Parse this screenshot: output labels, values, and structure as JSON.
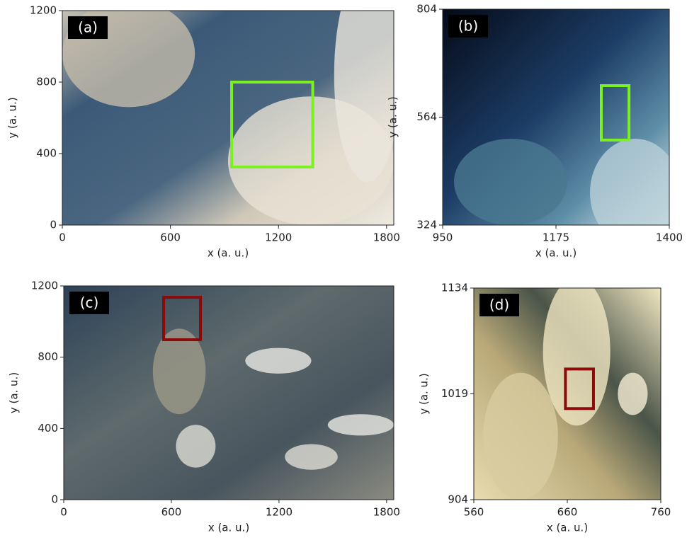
{
  "chart_data": [
    {
      "type": "image",
      "label": "(a)",
      "xlabel": "x (a. u.)",
      "ylabel": "y (a. u.)",
      "xlim": [
        0,
        1840
      ],
      "ylim": [
        0,
        1200
      ],
      "xticks": [
        0,
        600,
        1200,
        1800
      ],
      "yticks": [
        0,
        400,
        800,
        1200
      ],
      "box": {
        "x": [
          940,
          1390
        ],
        "y": [
          325,
          800
        ],
        "color": "#7cf020"
      }
    },
    {
      "type": "image",
      "label": "(b)",
      "xlabel": "x (a. u.)",
      "ylabel": "y (a. u.)",
      "xlim": [
        950,
        1400
      ],
      "ylim": [
        324,
        804
      ],
      "xticks": [
        950,
        1175,
        1400
      ],
      "yticks": [
        324,
        564,
        804
      ],
      "box": {
        "x": [
          1265,
          1320
        ],
        "y": [
          513,
          634
        ],
        "color": "#7cf020"
      }
    },
    {
      "type": "image",
      "label": "(c)",
      "xlabel": "x (a. u.)",
      "ylabel": "y (a. u.)",
      "xlim": [
        0,
        1840
      ],
      "ylim": [
        0,
        1200
      ],
      "xticks": [
        0,
        600,
        1200,
        1800
      ],
      "yticks": [
        0,
        400,
        800,
        1200
      ],
      "box": {
        "x": [
          557,
          762
        ],
        "y": [
          898,
          1136
        ],
        "color": "#8b0a0a"
      }
    },
    {
      "type": "image",
      "label": "(d)",
      "xlabel": "x (a. u.)",
      "ylabel": "y (a. u.)",
      "xlim": [
        560,
        760
      ],
      "ylim": [
        904,
        1134
      ],
      "xticks": [
        560,
        660,
        760
      ],
      "yticks": [
        904,
        1019,
        1134
      ],
      "box": {
        "x": [
          658,
          688
        ],
        "y": [
          1003,
          1046
        ],
        "color": "#8b0a0a"
      }
    }
  ]
}
